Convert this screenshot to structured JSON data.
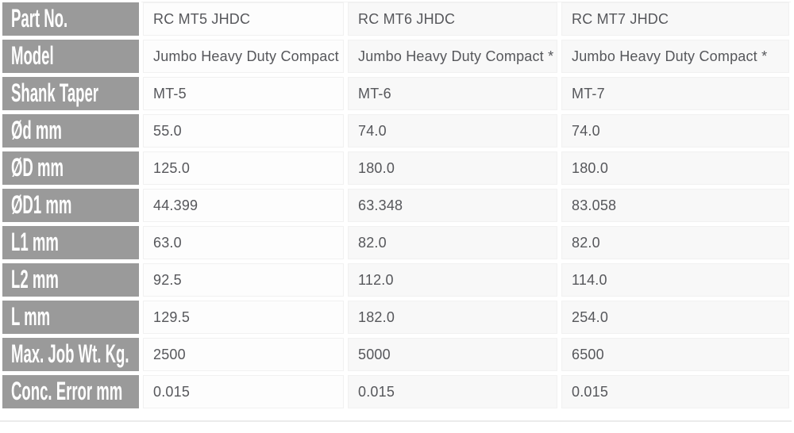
{
  "spec_table": {
    "column_count": 3,
    "rows": [
      {
        "label": "Part No.",
        "values": [
          "RC MT5 JHDC",
          "RC MT6 JHDC",
          "RC MT7 JHDC"
        ]
      },
      {
        "label": "Model",
        "values": [
          "Jumbo Heavy Duty Compact",
          "Jumbo Heavy Duty Compact *",
          "Jumbo Heavy Duty Compact *"
        ]
      },
      {
        "label": "Shank Taper",
        "values": [
          "MT-5",
          "MT-6",
          "MT-7"
        ]
      },
      {
        "label": "Ød mm",
        "values": [
          "55.0",
          "74.0",
          "74.0"
        ]
      },
      {
        "label": "ØD mm",
        "values": [
          "125.0",
          "180.0",
          "180.0"
        ]
      },
      {
        "label": "ØD1 mm",
        "values": [
          "44.399",
          "63.348",
          "83.058"
        ]
      },
      {
        "label": "L1 mm",
        "values": [
          "63.0",
          "82.0",
          "82.0"
        ]
      },
      {
        "label": "L2 mm",
        "values": [
          "92.5",
          "112.0",
          "114.0"
        ]
      },
      {
        "label": "L mm",
        "values": [
          "129.5",
          "182.0",
          "254.0"
        ]
      },
      {
        "label": "Max. Job Wt. Kg.",
        "values": [
          "2500",
          "5000",
          "6500"
        ]
      },
      {
        "label": "Conc. Error mm",
        "values": [
          "0.015",
          "0.015",
          "0.015"
        ]
      }
    ],
    "footnote_marker": "*",
    "colors": {
      "label_background": "#9a9a9a",
      "label_text": "#ffffff",
      "value_text": "#56575b",
      "value_background": "#fdfdfd",
      "value_background_alt": "#f8f8f8",
      "cell_border": "#f1f1f1",
      "page_background": "#ffffff"
    }
  }
}
